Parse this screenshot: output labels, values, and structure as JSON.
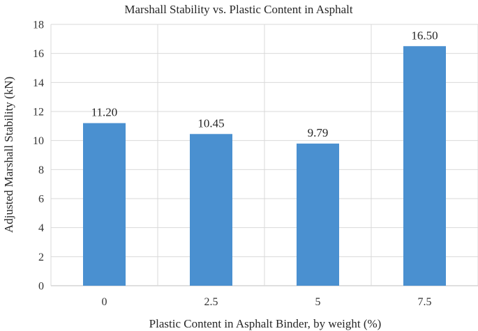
{
  "chart_data": {
    "type": "bar",
    "title": "Marshall Stability vs. Plastic Content in Asphalt",
    "xlabel": "Plastic Content in Asphalt Binder, by weight (%)",
    "ylabel": "Adjusted Marshall Stability (kN)",
    "categories": [
      "0",
      "2.5",
      "5",
      "7.5"
    ],
    "values": [
      11.2,
      10.45,
      9.79,
      16.5
    ],
    "data_labels": [
      "11.20",
      "10.45",
      "9.79",
      "16.50"
    ],
    "ylim": [
      0,
      18
    ],
    "yticks": [
      0,
      2,
      4,
      6,
      8,
      10,
      12,
      14,
      16,
      18
    ],
    "grid": true,
    "vertical_gridlines": true,
    "bar_color": "#4a90d0"
  }
}
